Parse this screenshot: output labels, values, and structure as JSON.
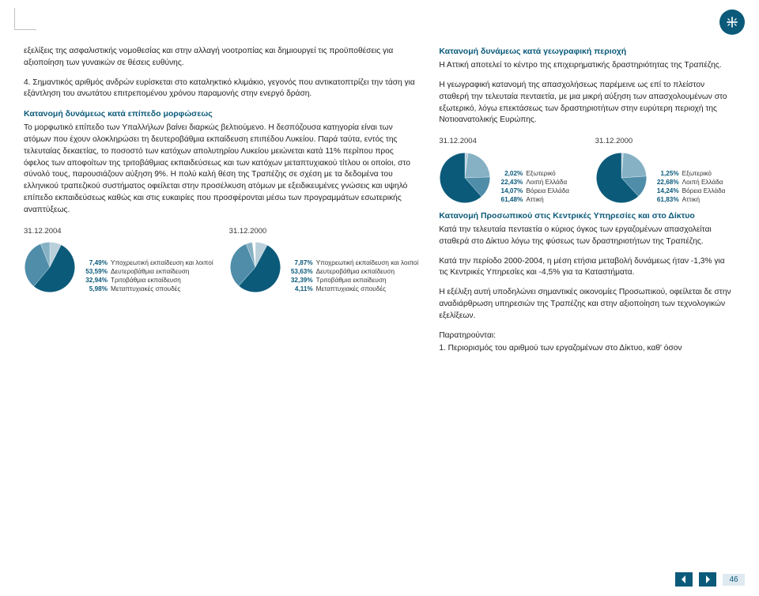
{
  "page_number": "46",
  "colors": {
    "brand": "#0b5a7a",
    "text": "#222222",
    "pie_main": "#0b5a7a",
    "pie_s1": "#4f8da9",
    "pie_s2": "#86b1c4",
    "pie_s3": "#b9d0db",
    "pie_bg": "#ffffff"
  },
  "left": {
    "p1": "εξελίξεις της ασφαλιστικής νομοθεσίας και στην αλλαγή νοοτροπίας και δημιουργεί τις προϋποθέσεις για αξιοποίηση των γυναικών σε θέσεις ευθύνης.",
    "p2": "4. Σημαντικός αριθμός ανδρών ευρίσκεται στο καταληκτικό κλιμάκιο, γεγονός που αντικατοπτρίζει την τάση για εξάντληση του ανωτάτου επιτρεπομένου χρόνου παραμονής στην ενεργό δράση.",
    "h1": "Κατανομή δυνάμεως κατά επίπεδο μορφώσεως",
    "p3": "Το μορφωτικό επίπεδο των Υπαλλήλων βαίνει διαρκώς βελτιούμενο. Η δεσπόζουσα κατηγορία είναι των ατόμων που έχουν ολοκληρώσει τη δευτεροβάθμια εκπαίδευση επιπέδου Λυκείου. Παρά ταύτα, εντός της τελευταίας δεκαετίας, το ποσοστό των κατόχων απολυτηρίου Λυκείου μειώνεται κατά 11% περίπου προς όφελος των αποφοίτων της τριτοβάθμιας εκπαιδεύσεως και των κατόχων μεταπτυχιακού τίτλου οι οποίοι, στο σύνολό τους, παρουσιάζουν αύξηση 9%. Η πολύ καλή θέση της Τραπέζης σε σχέση με τα δεδομένα του ελληνικού τραπεζικού συστήματος οφείλεται στην προσέλκυση ατόμων με εξειδικευμένες γνώσεις και υψηλό επίπεδο εκπαιδεύσεως καθώς και στις ευκαιρίες που προσφέρονται μέσω των προγραμμάτων εσωτερικής αναπτύξεως.",
    "chart1": {
      "date": "31.12.2004",
      "type": "pie",
      "slices": [
        {
          "pct": "7,49%",
          "label": "Υποχρεωτική εκπαίδευση και λοιποί",
          "value": 7.49,
          "color": "#b9d0db"
        },
        {
          "pct": "53,59%",
          "label": "Δευτεροβάθμια εκπαίδευση",
          "value": 53.59,
          "color": "#0b5a7a"
        },
        {
          "pct": "32,94%",
          "label": "Τριτοβάθμια εκπαίδευση",
          "value": 32.94,
          "color": "#4f8da9"
        },
        {
          "pct": "5,98%",
          "label": "Μεταπτυχιακές σπουδές",
          "value": 5.98,
          "color": "#86b1c4"
        }
      ]
    },
    "chart2": {
      "date": "31.12.2000",
      "type": "pie",
      "slices": [
        {
          "pct": "7,87%",
          "label": "Υποχρεωτική εκπαίδευση και λοιποί",
          "value": 7.87,
          "color": "#b9d0db"
        },
        {
          "pct": "53,63%",
          "label": "Δευτεροβάθμια εκπαίδευση",
          "value": 53.63,
          "color": "#0b5a7a"
        },
        {
          "pct": "32,39%",
          "label": "Τριτοβάθμια εκπαίδευση",
          "value": 32.39,
          "color": "#4f8da9"
        },
        {
          "pct": "4,11%",
          "label": "Μεταπτυχιακές σπουδές",
          "value": 4.11,
          "color": "#86b1c4"
        }
      ]
    }
  },
  "right": {
    "h1": "Κατανομή δυνάμεως κατά γεωγραφική περιοχή",
    "p1": "Η Αττική αποτελεί το κέντρο της επιχειρηματικής δραστηριότητας της Τραπέζης.",
    "p2": "Η γεωγραφική κατανομή της απασχολήσεως παρέμεινε ως επί το πλείστον σταθερή την τελευταία πενταετία, με μια μικρή αύξηση των απασχολουμένων στο εξωτερικό, λόγω επεκτάσεως των δραστηριοτήτων στην ευρύτερη περιοχή της Νοτιοανατολικής Ευρώπης.",
    "chart1": {
      "date": "31.12.2004",
      "type": "pie",
      "slices": [
        {
          "pct": "2,02%",
          "label": "Εξωτερικό",
          "value": 2.02,
          "color": "#b9d0db"
        },
        {
          "pct": "22,43%",
          "label": "Λοιπή Ελλάδα",
          "value": 22.43,
          "color": "#86b1c4"
        },
        {
          "pct": "14,07%",
          "label": "Βόρεια Ελλάδα",
          "value": 14.07,
          "color": "#4f8da9"
        },
        {
          "pct": "61,48%",
          "label": "Αττική",
          "value": 61.48,
          "color": "#0b5a7a"
        }
      ]
    },
    "chart2": {
      "date": "31.12.2000",
      "type": "pie",
      "slices": [
        {
          "pct": "1,25%",
          "label": "Εξωτερικό",
          "value": 1.25,
          "color": "#b9d0db"
        },
        {
          "pct": "22,68%",
          "label": "Λοιπή Ελλάδα",
          "value": 22.68,
          "color": "#86b1c4"
        },
        {
          "pct": "14,24%",
          "label": "Βόρεια Ελλάδα",
          "value": 14.24,
          "color": "#4f8da9"
        },
        {
          "pct": "61,83%",
          "label": "Αττική",
          "value": 61.83,
          "color": "#0b5a7a"
        }
      ]
    },
    "h2": "Κατανομή Προσωπικού στις Κεντρικές Υπηρεσίες και στο Δίκτυο",
    "p3": "Κατά την τελευταία πενταετία ο κύριος όγκος των εργαζομένων απασχολείται σταθερά στο Δίκτυο λόγω της φύσεως των δραστηριοτήτων της Τραπέζης.",
    "p4": "Κατά την περίοδο 2000-2004, η μέση ετήσια μεταβολή δυνάμεως ήταν -1,3% για τις Κεντρικές Υπηρεσίες και -4,5% για τα Καταστήματα.",
    "p5": "Η εξέλιξη αυτή υποδηλώνει σημαντικές οικονομίες Προσωπικού, οφείλεται δε στην αναδιάρθρωση υπηρεσιών της Τραπέζης και στην αξιοποίηση των τεχνολογικών εξελίξεων.",
    "p6": "Παρατηρούνται:",
    "p7": "1. Περιορισμός του αριθμού των εργαζομένων στο Δίκτυο, καθ' όσον"
  }
}
